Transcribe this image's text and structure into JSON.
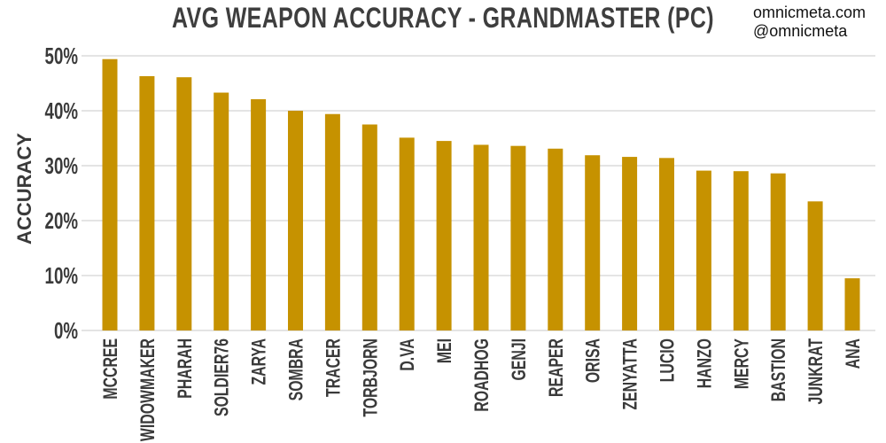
{
  "watermark": {
    "site": "omnicmeta.com",
    "handle": "@omnicmeta"
  },
  "colors": {
    "bar": "#c69200",
    "grid": "#c8c8c8",
    "text": "#3a3a3a"
  },
  "chart_data": {
    "type": "bar",
    "title": "AVG WEAPON ACCURACY - GRANDMASTER (PC)",
    "xlabel": "",
    "ylabel": "ACCURACY",
    "ylim": [
      0,
      50
    ],
    "yticks": [
      0,
      10,
      20,
      30,
      40,
      50
    ],
    "ytick_labels": [
      "0%",
      "10%",
      "20%",
      "30%",
      "40%",
      "50%"
    ],
    "grid": true,
    "categories": [
      "MCCREE",
      "WIDOWMAKER",
      "PHARAH",
      "SOLDIER76",
      "ZARYA",
      "SOMBRA",
      "TRACER",
      "TORBJORN",
      "D.VA",
      "MEI",
      "ROADHOG",
      "GENJI",
      "REAPER",
      "ORISA",
      "ZENYATTA",
      "LUCIO",
      "HANZO",
      "MERCY",
      "BASTION",
      "JUNKRAT",
      "ANA"
    ],
    "values": [
      49.4,
      46.3,
      46.1,
      43.3,
      42.1,
      40.0,
      39.4,
      37.5,
      35.1,
      34.5,
      33.8,
      33.6,
      33.1,
      31.9,
      31.6,
      31.4,
      29.1,
      29.0,
      28.6,
      23.5,
      9.5
    ]
  }
}
